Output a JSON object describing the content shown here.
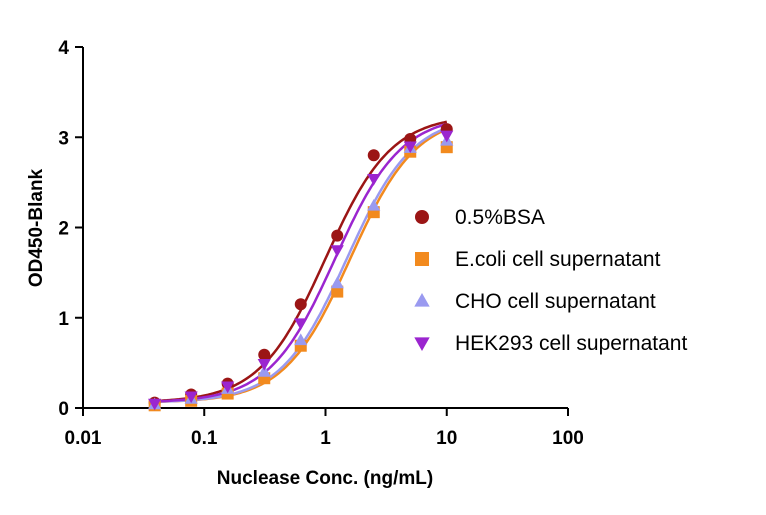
{
  "chart_data": {
    "type": "scatter",
    "title": "",
    "xlabel": "Nuclease Conc. (ng/mL)",
    "ylabel": "OD450-Blank",
    "x_scale": "log",
    "xlim": [
      0.01,
      100
    ],
    "ylim": [
      0,
      4
    ],
    "x_ticks": [
      0.01,
      0.1,
      1,
      10,
      100
    ],
    "x_tick_labels": [
      "0.01",
      "0.1",
      "1",
      "10",
      "100"
    ],
    "y_ticks": [
      0,
      1,
      2,
      3,
      4
    ],
    "y_tick_labels": [
      "0",
      "1",
      "2",
      "3",
      "4"
    ],
    "legend_position": "right",
    "x": [
      0.039,
      0.078,
      0.156,
      0.3125,
      0.625,
      1.25,
      2.5,
      5,
      10
    ],
    "series": [
      {
        "name": "0.5%BSA",
        "marker": "circle",
        "color": "#9b1515",
        "values": [
          0.06,
          0.15,
          0.27,
          0.59,
          1.15,
          1.91,
          2.8,
          2.98,
          3.09
        ],
        "fit": {
          "bottom": 0.06,
          "top": 3.25,
          "ec50": 1.0,
          "hill": 1.6
        }
      },
      {
        "name": "E.coli cell supernatant",
        "marker": "square",
        "color": "#f28a1e",
        "values": [
          0.03,
          0.08,
          0.16,
          0.33,
          0.69,
          1.29,
          2.17,
          2.84,
          2.89
        ],
        "fit": {
          "bottom": 0.06,
          "top": 3.25,
          "ec50": 1.6,
          "hill": 1.6
        }
      },
      {
        "name": "CHO cell supernatant",
        "marker": "triangle-up",
        "color": "#9a9af0",
        "values": [
          0.04,
          0.1,
          0.21,
          0.4,
          0.75,
          1.38,
          2.24,
          2.88,
          2.96
        ],
        "fit": {
          "bottom": 0.06,
          "top": 3.25,
          "ec50": 1.5,
          "hill": 1.6
        }
      },
      {
        "name": "HEK293 cell supernatant",
        "marker": "triangle-down",
        "color": "#9b25cf",
        "values": [
          0.05,
          0.13,
          0.24,
          0.49,
          0.94,
          1.75,
          2.54,
          2.9,
          3.02
        ],
        "fit": {
          "bottom": 0.06,
          "top": 3.25,
          "ec50": 1.2,
          "hill": 1.6
        }
      }
    ]
  }
}
